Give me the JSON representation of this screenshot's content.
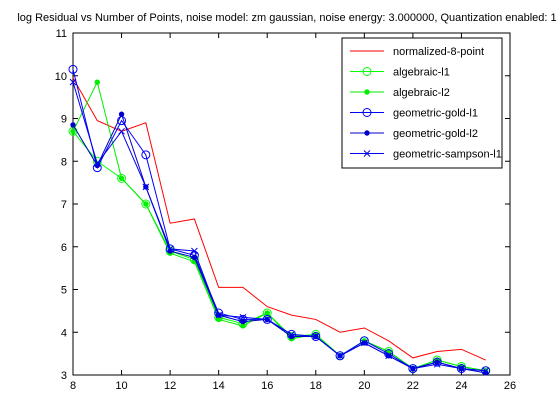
{
  "chart_data": {
    "type": "line",
    "title": "log Residual vs Number of Points, noise model: zm gaussian, noise energy: 3.000000, Quantization enabled: 1",
    "xlabel": "",
    "ylabel": "",
    "xlim": [
      8,
      26
    ],
    "ylim": [
      3,
      11
    ],
    "xticks": [
      8,
      10,
      12,
      14,
      16,
      18,
      20,
      22,
      24,
      26
    ],
    "yticks": [
      3,
      4,
      5,
      6,
      7,
      8,
      9,
      10,
      11
    ],
    "grid": false,
    "legend_position": "top-right",
    "x": [
      8,
      9,
      10,
      11,
      12,
      13,
      14,
      15,
      16,
      17,
      18,
      19,
      20,
      21,
      22,
      23,
      24,
      25
    ],
    "series": [
      {
        "name": "normalized-8-point",
        "color": "#ff0000",
        "marker": "none",
        "values": [
          9.95,
          8.95,
          8.7,
          8.9,
          6.55,
          6.65,
          5.05,
          5.05,
          4.6,
          4.4,
          4.3,
          4.0,
          4.1,
          3.8,
          3.4,
          3.55,
          3.6,
          3.35
        ]
      },
      {
        "name": "algebraic-l1",
        "color": "#00ff00",
        "marker": "circle",
        "values": [
          8.7,
          8.0,
          7.6,
          7.0,
          5.9,
          5.7,
          4.35,
          4.2,
          4.45,
          3.9,
          3.95,
          3.45,
          3.8,
          3.55,
          3.15,
          3.35,
          3.2,
          3.1
        ]
      },
      {
        "name": "algebraic-l2",
        "color": "#00ee00",
        "marker": "dot",
        "values": [
          8.7,
          9.85,
          7.6,
          7.0,
          5.85,
          5.65,
          4.3,
          4.15,
          4.45,
          3.85,
          3.95,
          3.45,
          3.8,
          3.55,
          3.15,
          3.35,
          3.2,
          3.1
        ]
      },
      {
        "name": "geometric-gold-l1",
        "color": "#0000ff",
        "marker": "circle",
        "values": [
          10.15,
          7.85,
          8.95,
          8.15,
          5.95,
          5.8,
          4.45,
          4.3,
          4.3,
          3.95,
          3.9,
          3.45,
          3.8,
          3.5,
          3.15,
          3.3,
          3.15,
          3.1
        ]
      },
      {
        "name": "geometric-gold-l2",
        "color": "#0000cc",
        "marker": "dot",
        "values": [
          8.85,
          7.9,
          9.1,
          7.4,
          5.9,
          5.75,
          4.4,
          4.25,
          4.3,
          3.9,
          3.9,
          3.45,
          3.75,
          3.45,
          3.15,
          3.3,
          3.15,
          3.05
        ]
      },
      {
        "name": "geometric-sampson-l1",
        "color": "#0000ee",
        "marker": "x",
        "values": [
          9.85,
          7.95,
          8.7,
          7.4,
          5.95,
          5.9,
          4.4,
          4.35,
          4.3,
          3.95,
          3.9,
          3.45,
          3.75,
          3.45,
          3.15,
          3.25,
          3.15,
          3.1
        ]
      }
    ]
  }
}
